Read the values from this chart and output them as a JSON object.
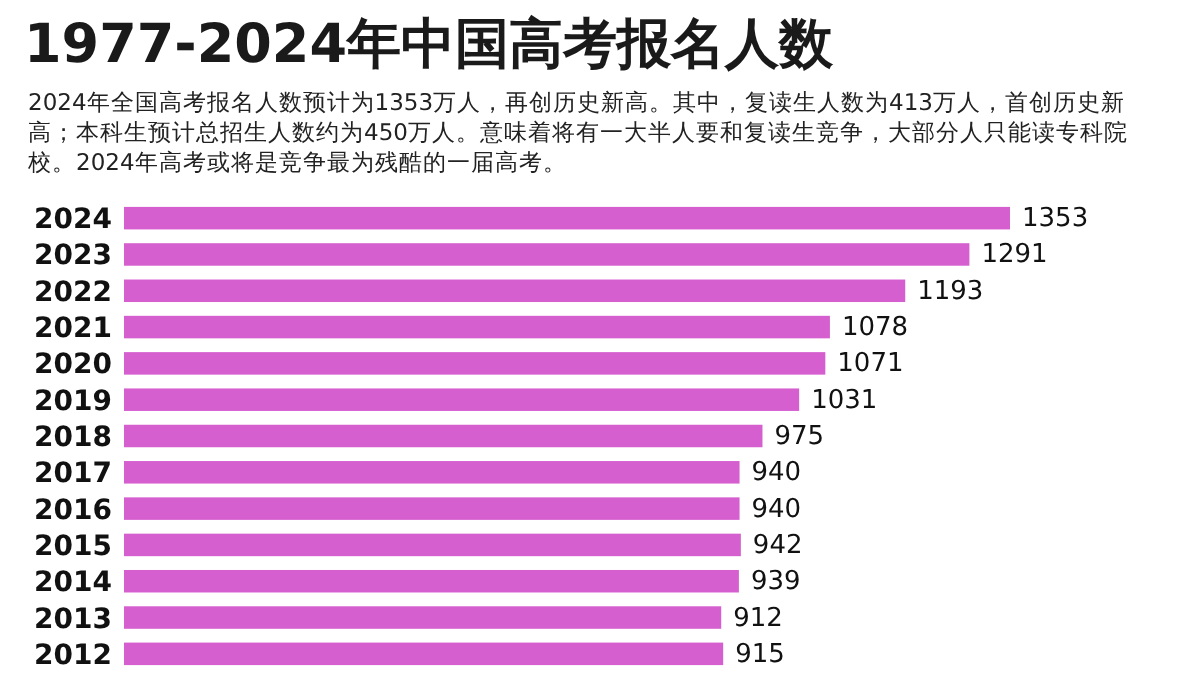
{
  "chart_data": {
    "type": "bar",
    "orientation": "horizontal",
    "title": "1977-2024年中国高考报名人数",
    "subtitle": "2024年全国高考报名人数预计为1353万人，再创历史新高。其中，复读生人数为413万人，首创历史新高；本科生预计总招生人数约为450万人。意味着将有一大半人要和复读生竞争，大部分人只能读专科院校。2024年高考或将是竞争最为残酷的一届高考。",
    "categories": [
      "2024",
      "2023",
      "2022",
      "2021",
      "2020",
      "2019",
      "2018",
      "2017",
      "2016",
      "2015",
      "2014",
      "2013",
      "2012"
    ],
    "values": [
      1353,
      1291,
      1193,
      1078,
      1071,
      1031,
      975,
      940,
      940,
      942,
      939,
      912,
      915
    ],
    "color": "#d65fd0",
    "data_labels": true
  }
}
